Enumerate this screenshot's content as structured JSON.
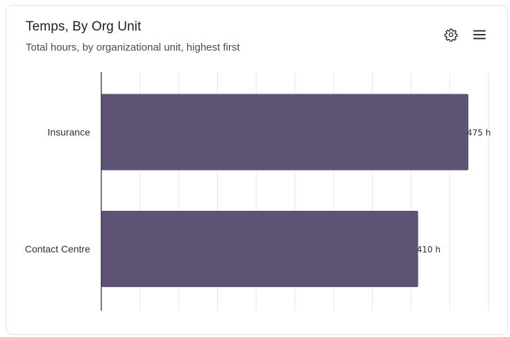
{
  "card": {
    "title": "Temps, By Org Unit",
    "subtitle": "Total hours, by organizational unit, highest first"
  },
  "icons": {
    "settings": "gear-icon",
    "menu": "hamburger-menu-icon"
  },
  "colors": {
    "bar": "#5e5374",
    "grid": "#e6e6ea",
    "axis": "#1f1f24"
  },
  "chart_data": {
    "type": "bar",
    "orientation": "horizontal",
    "categories": [
      "Insurance",
      "Contact Centre"
    ],
    "values": [
      475,
      410
    ],
    "value_labels": [
      "475 h",
      "410 h"
    ],
    "xlim": [
      0,
      500
    ],
    "grid": true,
    "legend": "none"
  }
}
